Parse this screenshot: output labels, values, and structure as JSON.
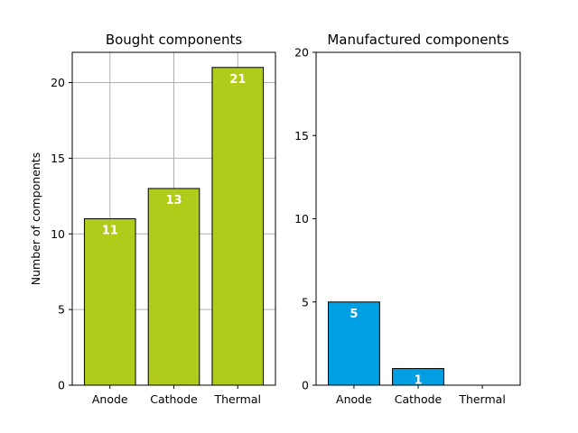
{
  "chart_data": [
    {
      "type": "bar",
      "title": "Bought components",
      "xlabel": "",
      "ylabel": "Number of components",
      "categories": [
        "Anode",
        "Cathode",
        "Thermal"
      ],
      "values": [
        11,
        13,
        21
      ],
      "data_labels": [
        "11",
        "13",
        "21"
      ],
      "ylim": [
        0,
        22
      ],
      "yticks": [
        0,
        5,
        10,
        15,
        20
      ],
      "grid": true,
      "bar_color": "#b0cb19",
      "edge_color": "#000000"
    },
    {
      "type": "bar",
      "title": "Manufactured components",
      "xlabel": "",
      "ylabel": "",
      "categories": [
        "Anode",
        "Cathode",
        "Thermal"
      ],
      "values": [
        5,
        1,
        0
      ],
      "data_labels": [
        "5",
        "1",
        ""
      ],
      "ylim": [
        0,
        20
      ],
      "yticks": [
        0,
        5,
        10,
        15,
        20
      ],
      "grid": false,
      "bar_color": "#009fe3",
      "edge_color": "#000000"
    }
  ]
}
